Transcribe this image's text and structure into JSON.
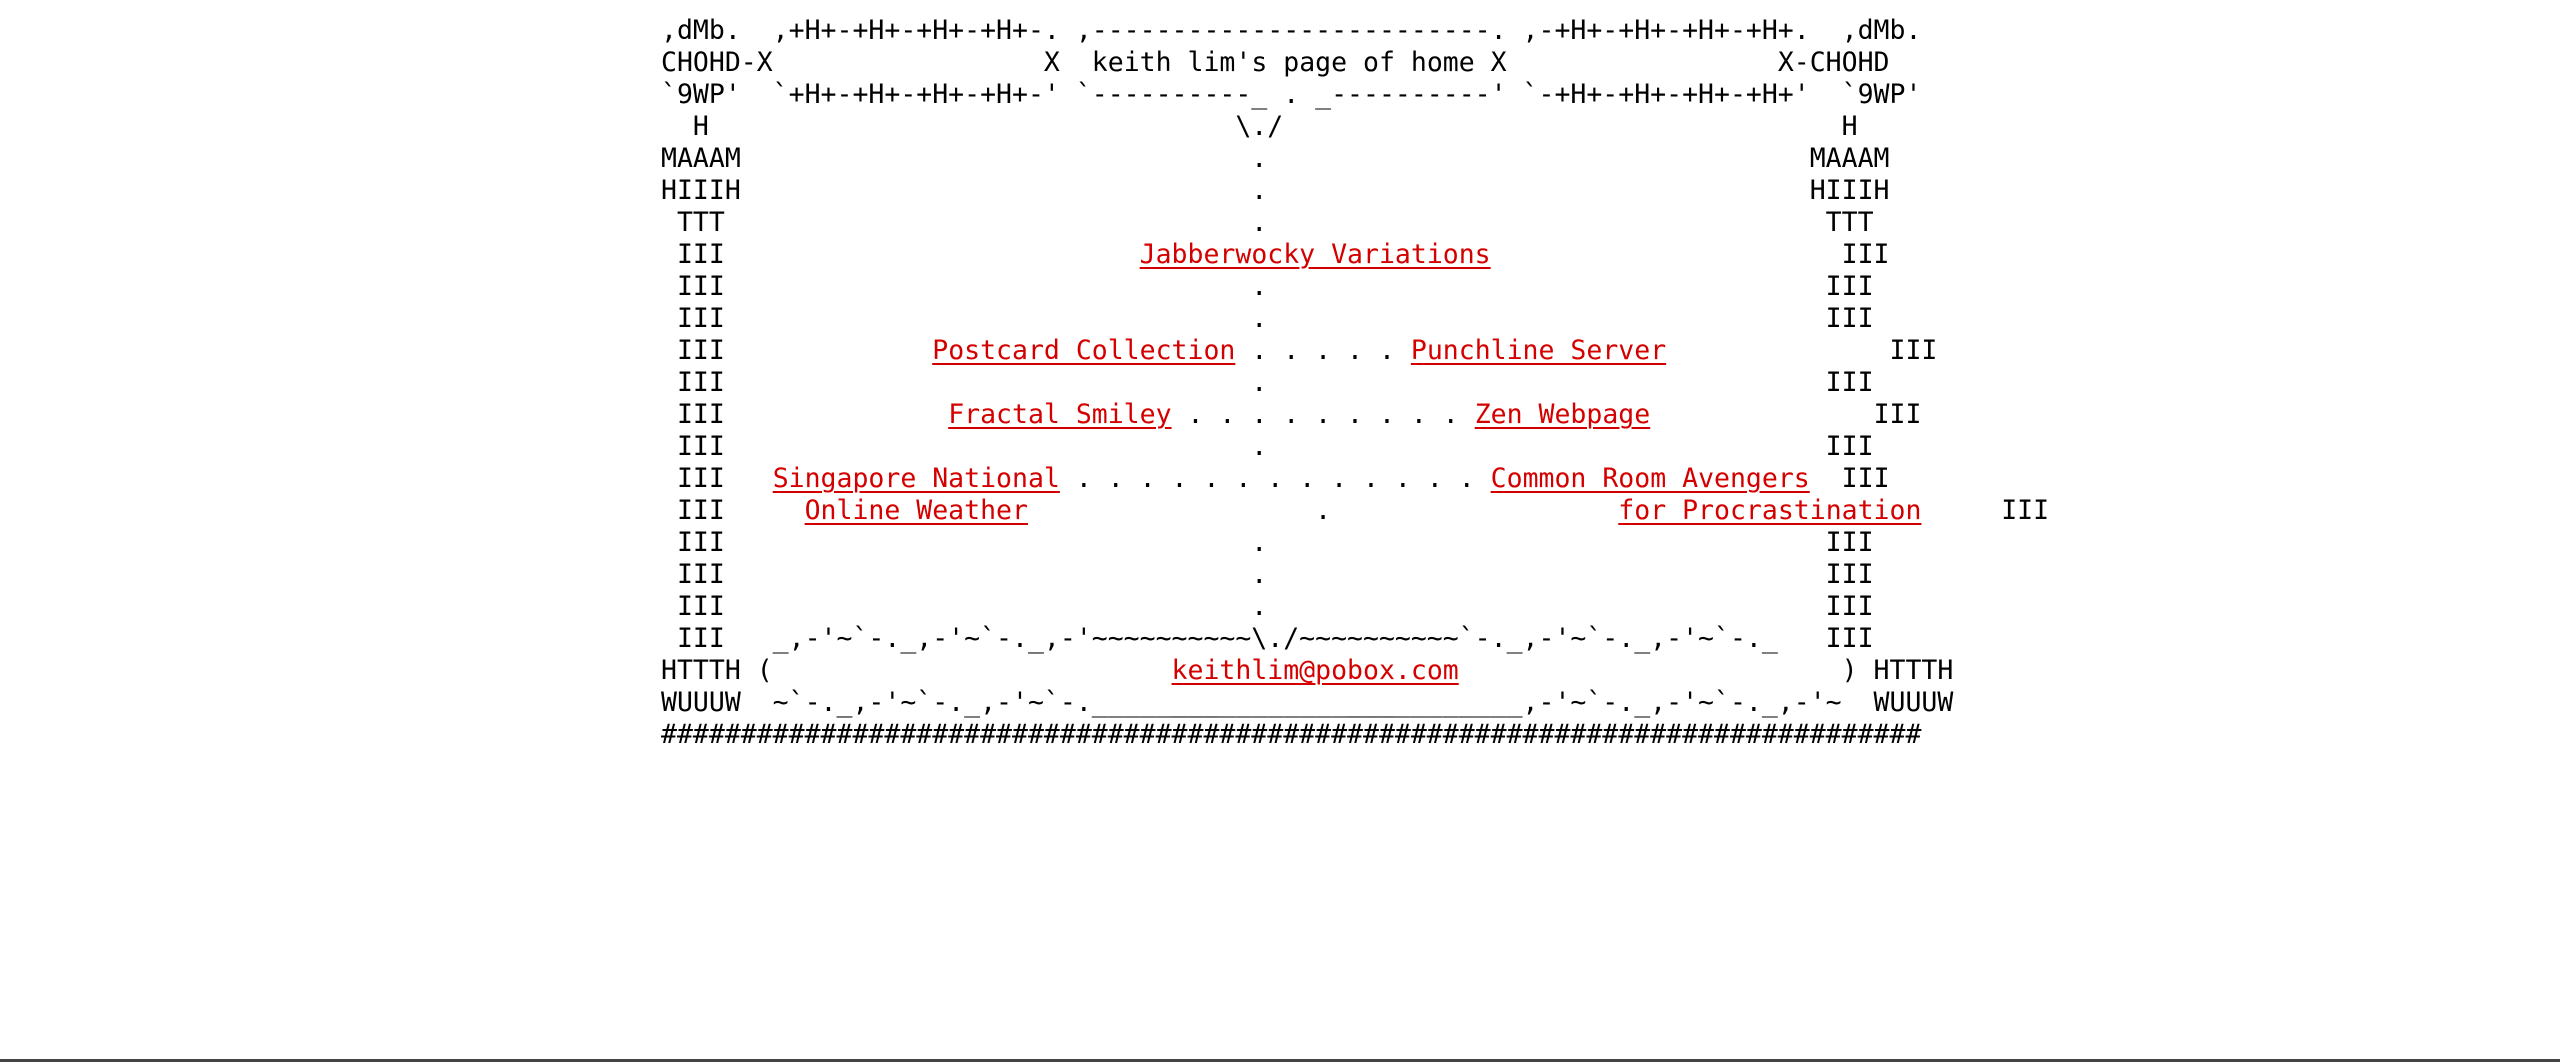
{
  "page_title": "keith lim's page of home",
  "art": {
    "pre_title": ",dMb.  ,+H+-+H+-+H+-+H+-. ,-------------------------. ,-+H+-+H+-+H+-+H+.  ,dMb.\nCHOHD-X                 X  ",
    "post_title": " X                 X-CHOHD\n`9WP'  `+H+-+H+-+H+-+H+-' `----------_ . _----------' `-+H+-+H+-+H+-+H+'  `9WP'\n  H                                 \\./                                   H\nMAAAM                                .                                  MAAAM\nHIIIH                                .                                  HIIIH\n TTT                                 .                                   TTT\n III                          ",
    "after_jabber": "                      III\n III                                 .                                   III\n III                                 .                                   III\n III             ",
    "between_postcard": " . . . . . ",
    "after_punchline": "              III\n III                                 .                                   III\n III              ",
    "between_fractal": " . . . . . . . . . ",
    "after_zen": "              III\n III                                 .                                   III\n III   ",
    "between_singapore": " . . . . . . . . . . . . . ",
    "after_common_1": "  III\n III     ",
    "between_weather": "                  .                  ",
    "after_common_2": "     III\n III                                 .                                   III\n III                                 .                                   III\n III                                 .                                   III\n III   _,-'~`-._,-'~`-._,-'~~~~~~~~~~\\./~~~~~~~~~~`-._,-'~`-._,-'~`-._   III\nHTTTH (                         ",
    "after_email": "                        ) HTTTH\nWUUUW  ~`-._,-'~`-._,-'~`-.___________________________,-'~`-._,-'~`-._,-'~  WUUUW\n###############################################################################"
  },
  "links": {
    "jabberwocky": "Jabberwocky Variations",
    "postcard": "Postcard Collection",
    "punchline": "Punchline Server",
    "fractal": "Fractal Smiley",
    "zen": "Zen Webpage",
    "singapore_1": "Singapore National",
    "singapore_2": "Online Weather",
    "common_room_1": "Common Room Avengers",
    "common_room_2": "for Procrastination",
    "email": "keithlim@pobox.com"
  }
}
